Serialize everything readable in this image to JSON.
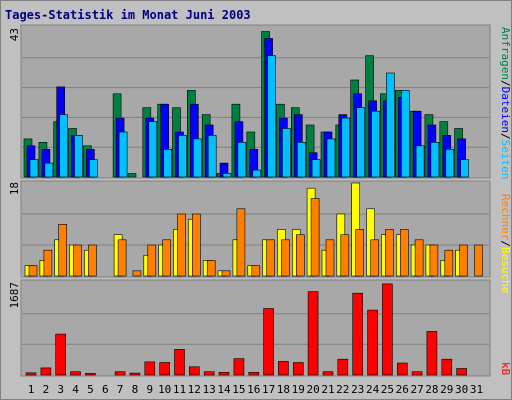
{
  "chart_data": {
    "type": "bar",
    "title": "Tages-Statistik im Monat Juni 2003",
    "categories": [
      "1",
      "2",
      "3",
      "4",
      "5",
      "6",
      "7",
      "8",
      "9",
      "10",
      "11",
      "12",
      "13",
      "14",
      "15",
      "16",
      "17",
      "18",
      "19",
      "20",
      "21",
      "22",
      "23",
      "24",
      "25",
      "26",
      "27",
      "28",
      "29",
      "30",
      "31"
    ],
    "weekend_days": [
      "1",
      "7",
      "8",
      "14",
      "15",
      "21",
      "22",
      "28",
      "29"
    ],
    "panels": [
      {
        "name": "top",
        "axis_label": "43",
        "ylim": [
          0,
          43
        ],
        "series_labels": [
          "Anfragen",
          "/",
          "Dateien",
          "/",
          "Seiten"
        ],
        "series_colors": [
          "#008040",
          "#000000",
          "#0000FF",
          "#000000",
          "#00C0FF"
        ],
        "series": [
          {
            "name": "Anfragen",
            "color": "#008040",
            "values": [
              11,
              10,
              16,
              14,
              9,
              0,
              24,
              1,
              20,
              21,
              20,
              25,
              18,
              1,
              21,
              13,
              42,
              21,
              20,
              15,
              13,
              15,
              28,
              35,
              24,
              25,
              19,
              18,
              16,
              14,
              0
            ]
          },
          {
            "name": "Dateien",
            "color": "#0000FF",
            "values": [
              9,
              8,
              26,
              12,
              8,
              0,
              17,
              0,
              17,
              21,
              13,
              21,
              15,
              4,
              16,
              8,
              40,
              17,
              18,
              7,
              13,
              18,
              24,
              22,
              22,
              23,
              19,
              15,
              12,
              11,
              0
            ]
          },
          {
            "name": "Seiten",
            "color": "#00C0FF",
            "values": [
              5,
              4,
              18,
              12,
              5,
              0,
              13,
              0,
              16,
              8,
              12,
              11,
              12,
              1,
              10,
              2,
              35,
              14,
              10,
              5,
              11,
              17,
              20,
              19,
              30,
              25,
              9,
              10,
              8,
              5,
              0
            ]
          }
        ]
      },
      {
        "name": "middle",
        "axis_label": "18",
        "ylim": [
          0,
          18
        ],
        "series_labels": [
          "Rechner",
          "/",
          "Besuche"
        ],
        "series_colors": [
          "#FF8000",
          "#000000",
          "#FFFF00"
        ],
        "series": [
          {
            "name": "Besuche",
            "color": "#FFFF00",
            "values": [
              2,
              3,
              7,
              6,
              5,
              0,
              8,
              0,
              4,
              6,
              9,
              11,
              3,
              1,
              7,
              2,
              7,
              9,
              9,
              17,
              5,
              12,
              18,
              13,
              8,
              8,
              6,
              6,
              3,
              5,
              0
            ]
          },
          {
            "name": "Rechner",
            "color": "#FF8000",
            "values": [
              2,
              5,
              10,
              6,
              6,
              0,
              7,
              1,
              6,
              7,
              12,
              12,
              3,
              1,
              13,
              2,
              7,
              7,
              8,
              15,
              7,
              8,
              9,
              7,
              9,
              9,
              7,
              6,
              5,
              6,
              6
            ]
          }
        ]
      },
      {
        "name": "bottom",
        "axis_label": "1687",
        "ylim": [
          0,
          1687
        ],
        "series_labels": [
          "kB"
        ],
        "series_colors": [
          "#FF0000"
        ],
        "series": [
          {
            "name": "kB",
            "color": "#FF0000",
            "values": [
              40,
              130,
              750,
              60,
              30,
              0,
              60,
              35,
              240,
              230,
              470,
              150,
              60,
              50,
              300,
              50,
              1220,
              250,
              230,
              1530,
              60,
              290,
              1500,
              1190,
              1670,
              220,
              60,
              800,
              290,
              120,
              0
            ]
          }
        ]
      }
    ]
  }
}
